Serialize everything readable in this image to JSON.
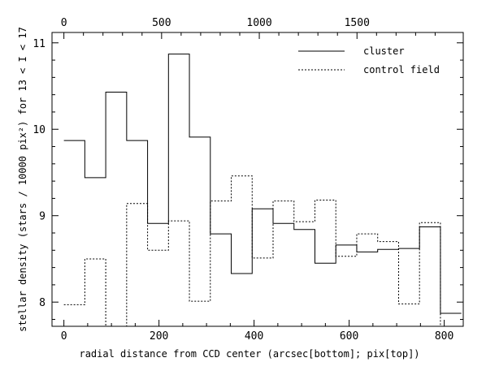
{
  "chart_data": {
    "type": "line",
    "step": true,
    "xlabel": "radial distance from CCD center (arcsec[bottom]; pix[top])",
    "ylabel": "stellar density (stars / 10000 pix²) for 13 < I < 17",
    "xlim": [
      -25,
      840
    ],
    "ylim": [
      7.72,
      11.12
    ],
    "x_ticks": [
      0,
      200,
      400,
      600,
      800
    ],
    "y_ticks": [
      8,
      9,
      10,
      11
    ],
    "top_axis": {
      "label_values": [
        0,
        500,
        1000,
        1500
      ],
      "positions_arcsec": [
        0,
        205.5,
        411,
        616.5
      ]
    },
    "grid": false,
    "legend_position": "top-right",
    "bin_edges": [
      0,
      44,
      88,
      132,
      176,
      220,
      264,
      308,
      352,
      396,
      440,
      484,
      528,
      572,
      616,
      660,
      704,
      748,
      792,
      836
    ],
    "series": [
      {
        "name": "cluster",
        "style": "solid",
        "values": [
          9.87,
          9.44,
          10.43,
          9.87,
          8.91,
          10.87,
          9.91,
          8.79,
          8.33,
          9.08,
          8.91,
          8.84,
          8.45,
          8.66,
          8.58,
          8.61,
          8.62,
          8.87,
          7.87
        ]
      },
      {
        "name": "control field",
        "style": "dotted",
        "values": [
          7.97,
          8.5,
          7.72,
          9.14,
          8.6,
          8.94,
          8.01,
          9.17,
          9.46,
          8.51,
          9.17,
          8.93,
          9.18,
          8.53,
          8.79,
          8.7,
          7.98,
          8.92,
          7.72
        ]
      }
    ]
  }
}
